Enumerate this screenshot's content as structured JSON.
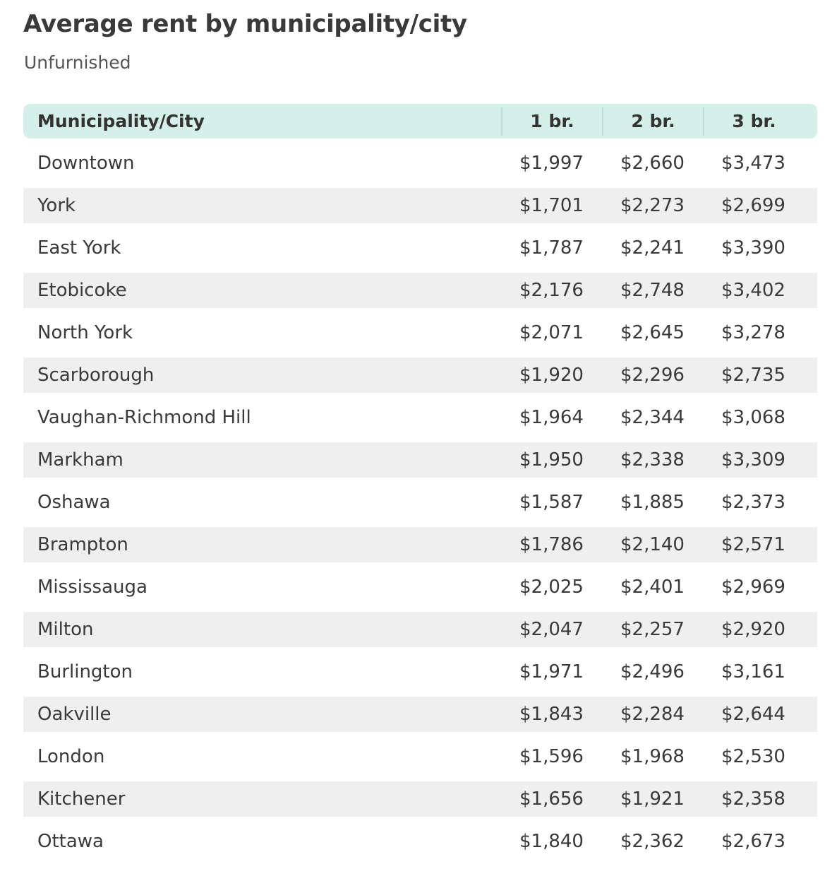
{
  "header": {
    "title": "Average rent by municipality/city",
    "subtitle": "Unfurnished"
  },
  "table": {
    "columns": [
      "Municipality/City",
      "1 br.",
      "2 br.",
      "3 br."
    ],
    "rows": [
      [
        "Downtown",
        "$1,997",
        "$2,660",
        "$3,473"
      ],
      [
        "York",
        "$1,701",
        "$2,273",
        "$2,699"
      ],
      [
        "East York",
        "$1,787",
        "$2,241",
        "$3,390"
      ],
      [
        "Etobicoke",
        "$2,176",
        "$2,748",
        "$3,402"
      ],
      [
        "North York",
        "$2,071",
        "$2,645",
        "$3,278"
      ],
      [
        "Scarborough",
        "$1,920",
        "$2,296",
        "$2,735"
      ],
      [
        "Vaughan-Richmond Hill",
        "$1,964",
        "$2,344",
        "$3,068"
      ],
      [
        "Markham",
        "$1,950",
        "$2,338",
        "$3,309"
      ],
      [
        "Oshawa",
        "$1,587",
        "$1,885",
        "$2,373"
      ],
      [
        "Brampton",
        "$1,786",
        "$2,140",
        "$2,571"
      ],
      [
        "Mississauga",
        "$2,025",
        "$2,401",
        "$2,969"
      ],
      [
        "Milton",
        "$2,047",
        "$2,257",
        "$2,920"
      ],
      [
        "Burlington",
        "$1,971",
        "$2,496",
        "$3,161"
      ],
      [
        "Oakville",
        "$1,843",
        "$2,284",
        "$2,644"
      ],
      [
        "London",
        "$1,596",
        "$1,968",
        "$2,530"
      ],
      [
        "Kitchener",
        "$1,656",
        "$1,921",
        "$2,358"
      ],
      [
        "Ottawa",
        "$1,840",
        "$2,362",
        "$2,673"
      ]
    ]
  }
}
